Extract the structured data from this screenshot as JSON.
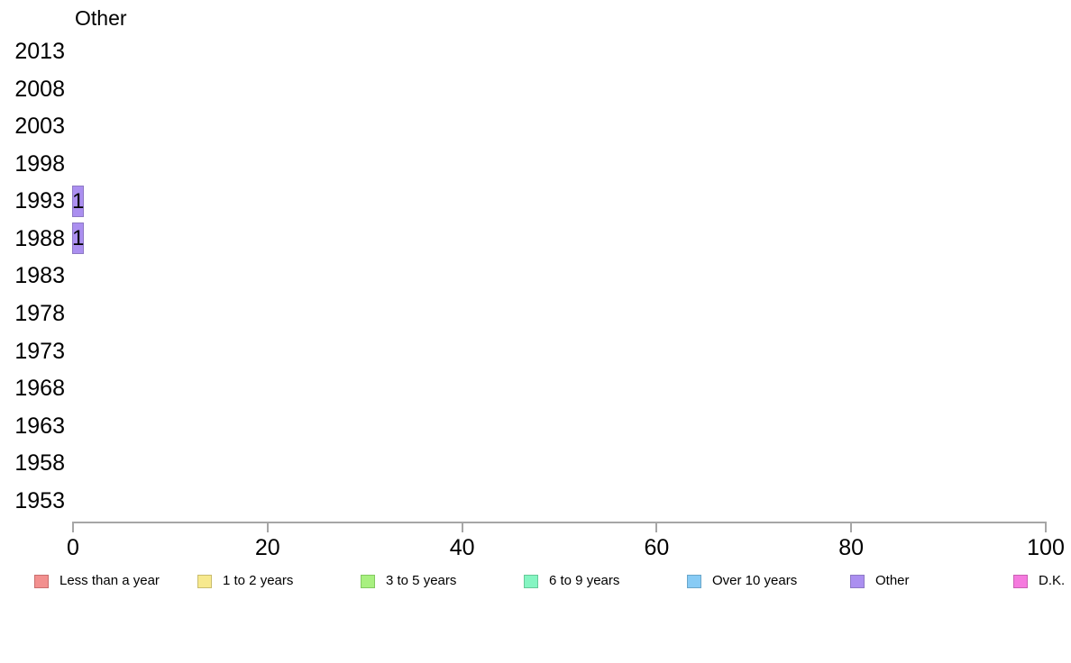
{
  "chart_data": {
    "type": "bar",
    "orientation": "horizontal",
    "title": "Other",
    "categories": [
      "2013",
      "2008",
      "2003",
      "1998",
      "1993",
      "1988",
      "1983",
      "1978",
      "1973",
      "1968",
      "1963",
      "1958",
      "1953"
    ],
    "values": [
      0,
      0,
      0,
      0,
      1,
      1,
      0,
      0,
      0,
      0,
      0,
      0,
      0
    ],
    "bar_labels": [
      "",
      "",
      "",
      "",
      "1",
      "1",
      "",
      "",
      "",
      "",
      "",
      "",
      ""
    ],
    "xlim": [
      0,
      100
    ],
    "xticks": [
      0,
      20,
      40,
      60,
      80,
      100
    ],
    "xtick_labels": [
      "0",
      "20",
      "40",
      "60",
      "80",
      "100"
    ],
    "grid": false,
    "bar_fill_color": "#AB8FF0",
    "bar_border_color": "#8D79C4",
    "axis_color": "#A6A6A6",
    "legend_position": "bottom",
    "legend": [
      {
        "label": "Less than a year",
        "fill": "#F2908F",
        "border": "#C96F6F"
      },
      {
        "label": "1 to 2 years",
        "fill": "#F7E98E",
        "border": "#C9BC6F"
      },
      {
        "label": "3 to 5 years",
        "fill": "#A8F080",
        "border": "#83C961"
      },
      {
        "label": "6 to 9 years",
        "fill": "#85F5C2",
        "border": "#66C998"
      },
      {
        "label": "Over 10 years",
        "fill": "#87CBF5",
        "border": "#6AA6C9"
      },
      {
        "label": "Other",
        "fill": "#AB8FF0",
        "border": "#8D79C4"
      },
      {
        "label": "D.K.",
        "fill": "#F57ADE",
        "border": "#C961B3"
      }
    ]
  }
}
